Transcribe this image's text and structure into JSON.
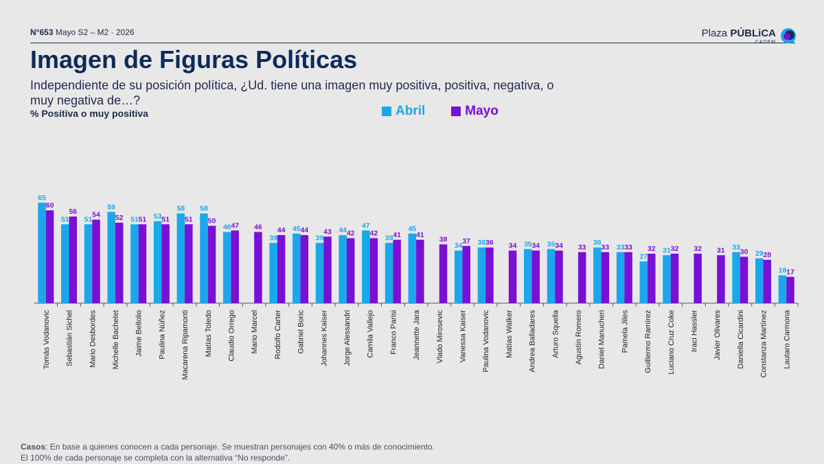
{
  "header": {
    "issue": "N°653",
    "period": "Mayo S2 – M2 · 2026",
    "logo_main_light": "Plaza",
    "logo_main_bold": "PÚBLiCA",
    "logo_sub": "CADEM"
  },
  "colors": {
    "abril": "#1aa7ec",
    "mayo": "#7a0fd6",
    "dark": "#1e2a4d"
  },
  "footer": {
    "casos_label": "Casos",
    "line1": ": En base a quienes conocen a cada personaje. Se muestran personajes con 40% o más de conocimiento.",
    "line2": "El 100% de cada personaje se completa con la alternativa “No responde”."
  },
  "chart_data": {
    "type": "bar",
    "title": "Imagen de Figuras Políticas",
    "subtitle": "Independiente de su posición política, ¿Ud. tiene una imagen muy positiva, positiva, negativa, o muy negativa de…?",
    "ylabel": "% Positiva o muy positiva",
    "legend_position": "top-center",
    "ylim": [
      0,
      70
    ],
    "grid": false,
    "categories": [
      "Tomás Vodanovic",
      "Sebastián Sichel",
      "Mario Desbordes",
      "Michelle Bachelet",
      "Jaime Bellolio",
      "Paulina Núñez",
      "Macarena Ripamonti",
      "Matías Toledo",
      "Claudio Orrego",
      "Mario Marcel",
      "Rodolfo Carter",
      "Gabriel Boric",
      "Johannes Kaiser",
      "Jorge Alessandri",
      "Camila Vallejo",
      "Franco Parisi",
      "Jeannette Jara",
      "Vlado Mirosevic",
      "Vanessa Kaiser",
      "Paulina Vodanovic",
      "Matías Walker",
      "Andrea Balladares",
      "Arturo Squella",
      "Agustín Romero",
      "Daniel Manucheri",
      "Pamela Jiles",
      "Guillermo Ramírez",
      "Luciano Cruz Coke",
      "Iraci Hassler",
      "Javier Olivares",
      "Daniella Cicardini",
      "Constanza Martínez",
      "Lautaro Carmona"
    ],
    "series": [
      {
        "name": "Abril",
        "values": [
          65,
          51,
          51,
          59,
          51,
          53,
          58,
          58,
          46,
          null,
          39,
          45,
          39,
          44,
          47,
          39,
          45,
          null,
          34,
          36,
          null,
          35,
          35,
          null,
          36,
          33,
          27,
          31,
          null,
          null,
          33,
          29,
          18
        ]
      },
      {
        "name": "Mayo",
        "values": [
          60,
          56,
          54,
          52,
          51,
          51,
          51,
          50,
          47,
          46,
          44,
          44,
          43,
          42,
          42,
          41,
          41,
          38,
          37,
          36,
          34,
          34,
          34,
          33,
          33,
          33,
          32,
          32,
          32,
          31,
          30,
          28,
          17
        ]
      }
    ]
  }
}
